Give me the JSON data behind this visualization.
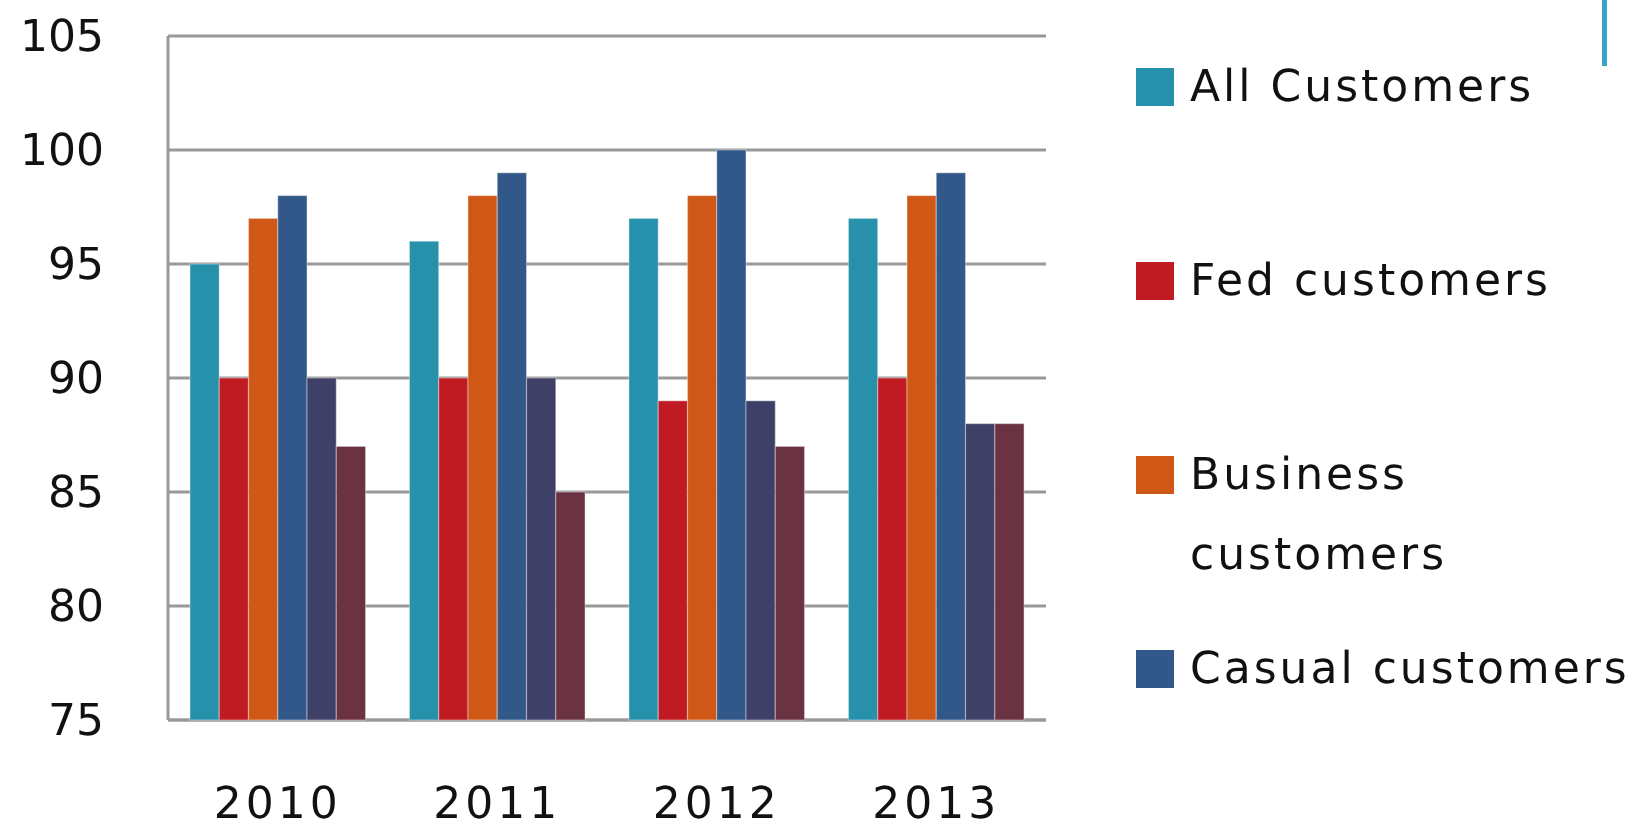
{
  "chart_data": {
    "type": "bar",
    "categories": [
      "2010",
      "2011",
      "2012",
      "2013"
    ],
    "series": [
      {
        "name": "All Customers",
        "color": "#2790ab",
        "values": [
          95,
          96,
          97,
          97
        ]
      },
      {
        "name": "Fed customers",
        "color": "#c01b23",
        "values": [
          90,
          90,
          89,
          90
        ]
      },
      {
        "name": "Business customers",
        "color": "#cf5817",
        "values": [
          97,
          98,
          98,
          98
        ]
      },
      {
        "name": "Casual customers",
        "color": "#325789",
        "values": [
          98,
          99,
          100,
          99
        ]
      },
      {
        "color": "#3e4068",
        "values": [
          90,
          90,
          89,
          88
        ]
      },
      {
        "color": "#6b3342",
        "values": [
          87,
          85,
          87,
          88
        ]
      }
    ],
    "ylim": [
      75,
      105
    ],
    "yticks": [
      75,
      80,
      85,
      90,
      95,
      100,
      105
    ],
    "grid": "y",
    "legend": "right"
  }
}
